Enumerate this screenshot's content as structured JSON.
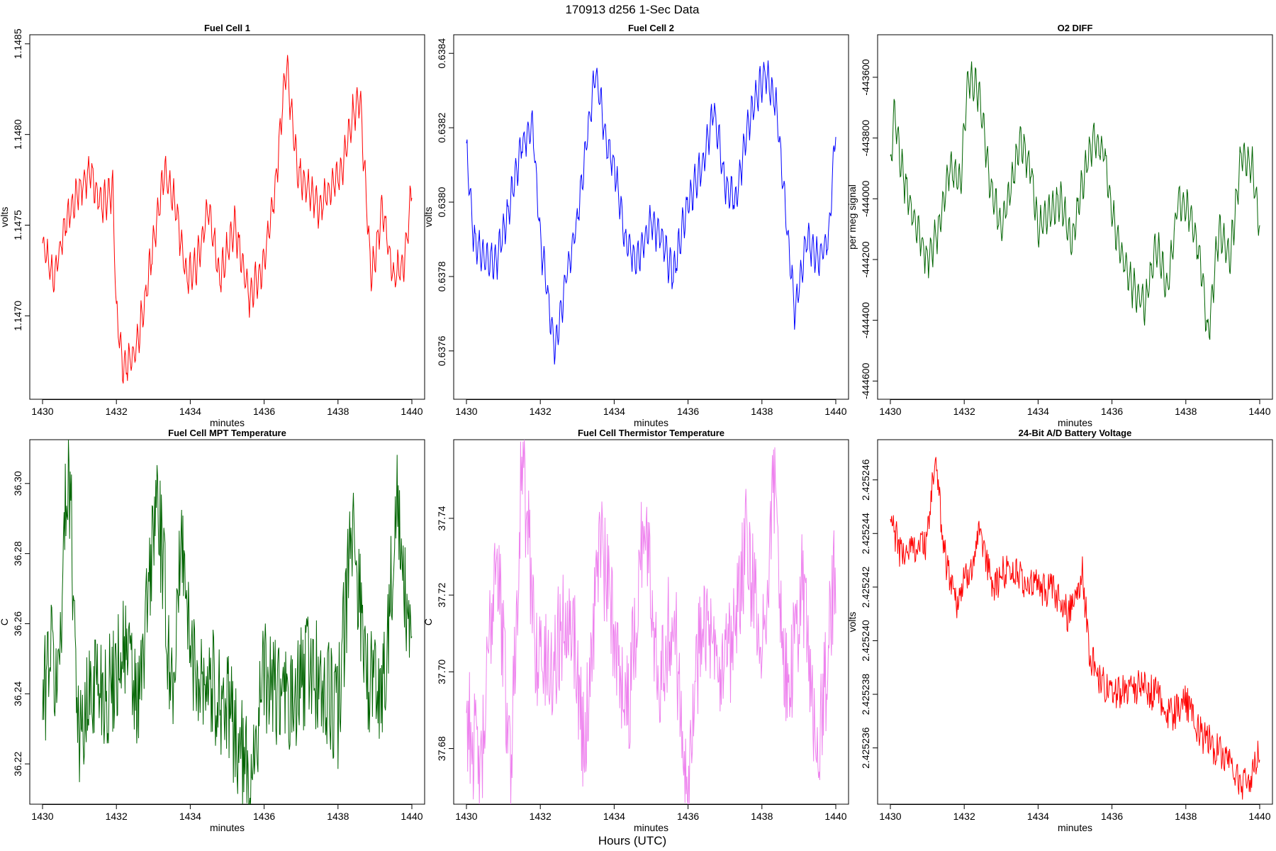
{
  "figure": {
    "title": "170913   d256   1-Sec Data",
    "xlabel": "Hours (UTC)"
  },
  "chart_data": [
    {
      "type": "line",
      "title": "Fuel Cell 1",
      "xlabel": "minutes",
      "ylabel": "volts",
      "color": "#ff0000",
      "xlim": [
        1430,
        1440
      ],
      "ylim": [
        1.14654,
        1.14855
      ],
      "xticks": [
        1430,
        1432,
        1434,
        1436,
        1438,
        1440
      ],
      "yticks": [
        1.147,
        1.1475,
        1.148,
        1.1485
      ],
      "ytick_labels": [
        "1.1470",
        "1.1475",
        "1.1480",
        "1.1485"
      ],
      "series": [
        {
          "name": "Fuel Cell 1",
          "x": [
            1430,
            1430.3,
            1430.6,
            1431,
            1431.3,
            1431.6,
            1431.9,
            1432,
            1432.2,
            1432.5,
            1432.8,
            1433,
            1433.3,
            1433.6,
            1433.9,
            1434.2,
            1434.5,
            1434.8,
            1435.2,
            1435.6,
            1436,
            1436.3,
            1436.6,
            1436.9,
            1437.2,
            1437.5,
            1437.8,
            1438.1,
            1438.4,
            1438.6,
            1438.9,
            1439.2,
            1439.5,
            1439.8,
            1440
          ],
          "values": [
            1.1474,
            1.1472,
            1.1475,
            1.1477,
            1.1478,
            1.1476,
            1.1477,
            1.147,
            1.1467,
            1.1468,
            1.1471,
            1.1474,
            1.1478,
            1.1476,
            1.1472,
            1.1473,
            1.1476,
            1.1472,
            1.1475,
            1.1471,
            1.1473,
            1.1477,
            1.1484,
            1.1478,
            1.1477,
            1.1476,
            1.1477,
            1.1478,
            1.1481,
            1.1482,
            1.1472,
            1.1476,
            1.1472,
            1.1473,
            1.1477
          ]
        }
      ]
    },
    {
      "type": "line",
      "title": "Fuel Cell 2",
      "xlabel": "minutes",
      "ylabel": "volts",
      "color": "#0000ff",
      "xlim": [
        1430,
        1440
      ],
      "ylim": [
        0.63747,
        0.63845
      ],
      "xticks": [
        1430,
        1432,
        1434,
        1436,
        1438,
        1440
      ],
      "yticks": [
        0.6376,
        0.6378,
        0.638,
        0.6382,
        0.6384
      ],
      "ytick_labels": [
        "0.6376",
        "0.6378",
        "0.6380",
        "0.6382",
        "0.6384"
      ],
      "series": [
        {
          "name": "Fuel Cell 2",
          "x": [
            1430,
            1430.2,
            1430.5,
            1430.8,
            1431.2,
            1431.5,
            1431.8,
            1432,
            1432.2,
            1432.4,
            1432.7,
            1433,
            1433.3,
            1433.5,
            1433.8,
            1434,
            1434.3,
            1434.6,
            1435,
            1435.3,
            1435.6,
            1436,
            1436.4,
            1436.7,
            1437,
            1437.3,
            1437.6,
            1437.9,
            1438.1,
            1438.4,
            1438.7,
            1438.9,
            1439.2,
            1439.5,
            1439.8,
            1440
          ],
          "values": [
            0.63813,
            0.6379,
            0.63785,
            0.63784,
            0.638,
            0.63816,
            0.6382,
            0.6379,
            0.63775,
            0.6376,
            0.6378,
            0.63795,
            0.6382,
            0.63835,
            0.63815,
            0.6381,
            0.6379,
            0.63784,
            0.63795,
            0.6379,
            0.6378,
            0.638,
            0.6381,
            0.63825,
            0.63805,
            0.638,
            0.6382,
            0.6383,
            0.63835,
            0.63825,
            0.6379,
            0.6377,
            0.6379,
            0.63785,
            0.6379,
            0.6382
          ]
        }
      ]
    },
    {
      "type": "line",
      "title": "O2 DIFF",
      "xlabel": "minutes",
      "ylabel": "per meg signal",
      "color": "#006400",
      "xlim": [
        1430,
        1440
      ],
      "ylim": [
        -444660,
        -443460
      ],
      "xticks": [
        1430,
        1432,
        1434,
        1436,
        1438,
        1440
      ],
      "yticks": [
        -443600,
        -443800,
        -444000,
        -444200,
        -444400,
        -444600
      ],
      "ytick_labels": [
        "-443600",
        "-443800",
        "-444000",
        "-444200",
        "-444400",
        "-444600"
      ],
      "series": [
        {
          "name": "O2 DIFF",
          "x": [
            1430,
            1430.1,
            1430.3,
            1430.6,
            1431,
            1431.3,
            1431.6,
            1431.9,
            1432.1,
            1432.4,
            1432.7,
            1433,
            1433.3,
            1433.5,
            1433.8,
            1434,
            1434.3,
            1434.6,
            1434.9,
            1435.2,
            1435.5,
            1435.8,
            1436,
            1436.3,
            1436.6,
            1436.9,
            1437.2,
            1437.5,
            1437.8,
            1438.1,
            1438.4,
            1438.6,
            1438.9,
            1439.2,
            1439.5,
            1439.8,
            1440
          ],
          "values": [
            -443900,
            -443700,
            -443900,
            -444050,
            -444200,
            -444100,
            -443900,
            -443950,
            -443600,
            -443650,
            -443950,
            -444100,
            -443950,
            -443800,
            -443900,
            -444100,
            -444050,
            -444000,
            -444150,
            -443950,
            -443800,
            -443850,
            -444050,
            -444200,
            -444300,
            -444350,
            -444150,
            -444300,
            -444000,
            -444050,
            -444200,
            -444450,
            -444100,
            -444200,
            -443850,
            -443900,
            -444100
          ]
        }
      ]
    },
    {
      "type": "line",
      "title": "Fuel Cell MPT Temperature",
      "xlabel": "minutes",
      "ylabel": "C",
      "color": "#006400",
      "xlim": [
        1430,
        1440
      ],
      "ylim": [
        36.2085,
        36.3125
      ],
      "xticks": [
        1430,
        1432,
        1434,
        1436,
        1438,
        1440
      ],
      "yticks": [
        36.22,
        36.24,
        36.26,
        36.28,
        36.3
      ],
      "ytick_labels": [
        "36.22",
        "36.24",
        "36.26",
        "36.28",
        "36.30"
      ],
      "series": [
        {
          "name": "Fuel Cell MPT Temperature",
          "x": [
            1430,
            1430.2,
            1430.4,
            1430.7,
            1431,
            1431.4,
            1431.8,
            1432.2,
            1432.6,
            1433.1,
            1433.5,
            1433.8,
            1434,
            1434.4,
            1434.8,
            1435.2,
            1435.6,
            1436,
            1436.4,
            1436.8,
            1437.2,
            1437.6,
            1438,
            1438.4,
            1438.8,
            1439.2,
            1439.6,
            1440
          ],
          "values": [
            36.235,
            36.255,
            36.24,
            36.31,
            36.225,
            36.245,
            36.24,
            36.255,
            36.235,
            36.298,
            36.24,
            36.286,
            36.25,
            36.245,
            36.24,
            36.23,
            36.215,
            36.245,
            36.24,
            36.235,
            36.25,
            36.24,
            36.235,
            36.289,
            36.245,
            36.24,
            36.292,
            36.245
          ]
        }
      ]
    },
    {
      "type": "line",
      "title": "Fuel Cell Thermistor Temperature",
      "xlabel": "minutes",
      "ylabel": "C",
      "color": "#ee82ee",
      "xlim": [
        1430,
        1440
      ],
      "ylim": [
        37.6655,
        37.7605
      ],
      "xticks": [
        1430,
        1432,
        1434,
        1436,
        1438,
        1440
      ],
      "yticks": [
        37.68,
        37.7,
        37.72,
        37.74
      ],
      "ytick_labels": [
        "37.68",
        "37.70",
        "37.72",
        "37.74"
      ],
      "series": [
        {
          "name": "Fuel Cell Thermistor Temperature",
          "x": [
            1430,
            1430.4,
            1430.8,
            1431.2,
            1431.5,
            1431.9,
            1432.3,
            1432.8,
            1433.2,
            1433.6,
            1434,
            1434.4,
            1434.8,
            1435.2,
            1435.6,
            1436,
            1436.4,
            1436.8,
            1437.2,
            1437.6,
            1438,
            1438.3,
            1438.7,
            1439.1,
            1439.5,
            1440
          ],
          "values": [
            37.69,
            37.672,
            37.735,
            37.675,
            37.756,
            37.705,
            37.7,
            37.72,
            37.68,
            37.735,
            37.71,
            37.69,
            37.741,
            37.7,
            37.715,
            37.672,
            37.72,
            37.695,
            37.705,
            37.735,
            37.7,
            37.751,
            37.69,
            37.725,
            37.675,
            37.728
          ]
        }
      ]
    },
    {
      "type": "line",
      "title": "24-Bit A/D Battery Voltage",
      "xlabel": "minutes",
      "ylabel": "volts",
      "color": "#ff0000",
      "xlim": [
        1430,
        1440
      ],
      "ylim": [
        2.4252339,
        2.4252475
      ],
      "xticks": [
        1430,
        1432,
        1434,
        1436,
        1438,
        1440
      ],
      "yticks": [
        2.425236,
        2.425238,
        2.42524,
        2.425242,
        2.425244,
        2.425246
      ],
      "ytick_labels": [
        "2.425236",
        "2.425238",
        "2.425240",
        "2.425242",
        "2.425244",
        "2.425246"
      ],
      "series": [
        {
          "name": "24-Bit A/D Battery Voltage",
          "x": [
            1430,
            1430.3,
            1430.6,
            1431,
            1431.2,
            1431.5,
            1431.8,
            1432.1,
            1432.4,
            1432.8,
            1433.2,
            1433.6,
            1434,
            1434.4,
            1434.8,
            1435.2,
            1435.4,
            1435.7,
            1436,
            1436.4,
            1436.8,
            1437.2,
            1437.6,
            1438,
            1438.4,
            1438.8,
            1439.2,
            1439.5,
            1439.8,
            1440
          ],
          "values": [
            2.4252445,
            2.4252432,
            2.4252435,
            2.4252437,
            2.4252468,
            2.425243,
            2.4252415,
            2.4252425,
            2.4252438,
            2.425242,
            2.4252428,
            2.4252422,
            2.425242,
            2.4252418,
            2.425241,
            2.4252425,
            2.4252395,
            2.4252385,
            2.425238,
            2.4252383,
            2.4252382,
            2.425238,
            2.4252372,
            2.4252378,
            2.4252365,
            2.425236,
            2.4252355,
            2.4252345,
            2.425235,
            2.4252358
          ]
        }
      ]
    }
  ]
}
